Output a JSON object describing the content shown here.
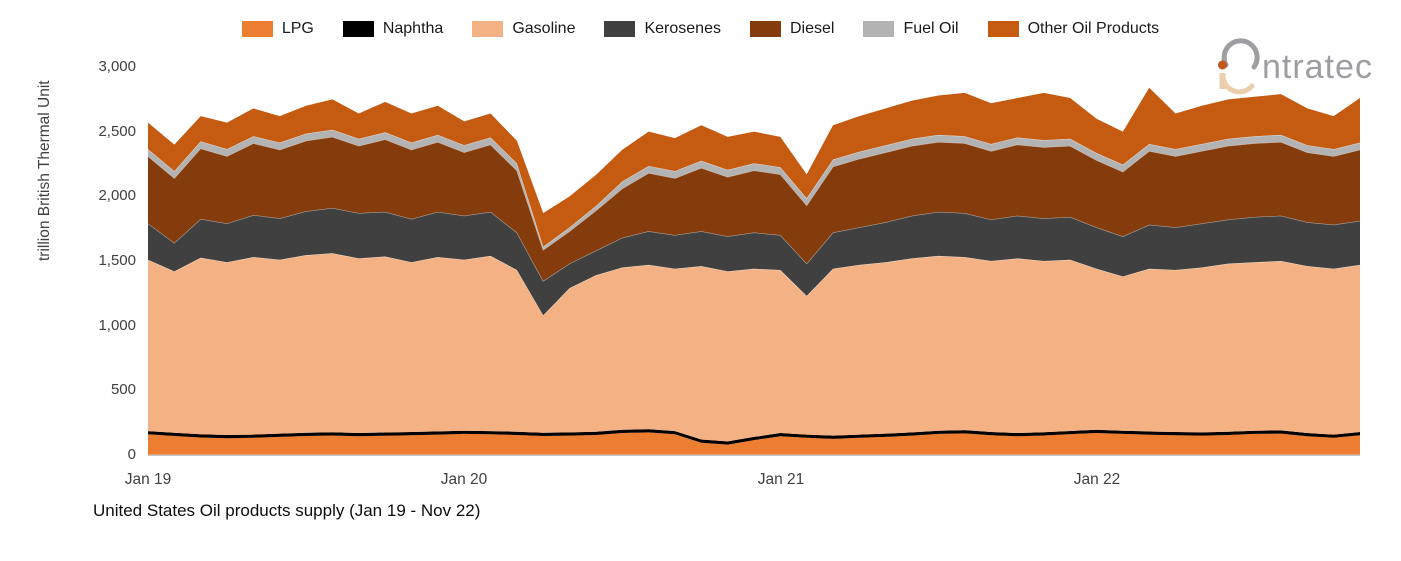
{
  "legend": {
    "items": [
      {
        "label": "LPG",
        "color": "#ED7D31"
      },
      {
        "label": "Naphtha",
        "color": "#000000"
      },
      {
        "label": "Gasoline",
        "color": "#F4B183"
      },
      {
        "label": "Kerosenes",
        "color": "#404040"
      },
      {
        "label": "Diesel",
        "color": "#843C0C"
      },
      {
        "label": "Fuel Oil",
        "color": "#B3B3B3"
      },
      {
        "label": "Other Oil Products",
        "color": "#C55A11"
      }
    ]
  },
  "logo": {
    "text": "ntratec",
    "full_name": "intratec",
    "gray": "#9c9ea1",
    "orange": "#C0571C",
    "beige": "#EBCFAC"
  },
  "y_axis": {
    "title": "trillion British Thermal Unit",
    "ticks": [
      "3,000",
      "2,500",
      "2,000",
      "1,500",
      "1,000",
      "500",
      "0"
    ]
  },
  "x_axis": {
    "ticks": [
      "Jan 19",
      "Jan 20",
      "Jan 21",
      "Jan 22"
    ]
  },
  "caption": "United States Oil products supply (Jan 19 - Nov 22)",
  "chart_data": {
    "type": "area",
    "stacked": true,
    "title": "United States Oil products supply (Jan 19 - Nov 22)",
    "ylabel": "trillion British Thermal Unit",
    "ylim": [
      0,
      3000
    ],
    "grid": false,
    "legend_position": "top",
    "axis_line_color": "#c6c6c6",
    "x": [
      "2019-01",
      "2019-02",
      "2019-03",
      "2019-04",
      "2019-05",
      "2019-06",
      "2019-07",
      "2019-08",
      "2019-09",
      "2019-10",
      "2019-11",
      "2019-12",
      "2020-01",
      "2020-02",
      "2020-03",
      "2020-04",
      "2020-05",
      "2020-06",
      "2020-07",
      "2020-08",
      "2020-09",
      "2020-10",
      "2020-11",
      "2020-12",
      "2021-01",
      "2021-02",
      "2021-03",
      "2021-04",
      "2021-05",
      "2021-06",
      "2021-07",
      "2021-08",
      "2021-09",
      "2021-10",
      "2021-11",
      "2021-12",
      "2022-01",
      "2022-02",
      "2022-03",
      "2022-04",
      "2022-05",
      "2022-06",
      "2022-07",
      "2022-08",
      "2022-09",
      "2022-10",
      "2022-11"
    ],
    "x_tick_labels": [
      "Jan 19",
      "Jan 20",
      "Jan 21",
      "Jan 22"
    ],
    "x_tick_month_index": [
      0,
      12,
      24,
      36
    ],
    "series": [
      {
        "name": "LPG",
        "color": "#ED7D31",
        "values": [
          160,
          147,
          135,
          130,
          133,
          140,
          147,
          151,
          145,
          149,
          153,
          158,
          163,
          160,
          155,
          147,
          150,
          155,
          170,
          175,
          160,
          95,
          80,
          115,
          145,
          133,
          125,
          133,
          140,
          150,
          163,
          167,
          153,
          145,
          151,
          161,
          170,
          163,
          157,
          153,
          150,
          155,
          163,
          165,
          145,
          133,
          153
        ]
      },
      {
        "name": "Naphtha",
        "color": "#000000",
        "values": [
          25,
          25,
          25,
          25,
          25,
          25,
          25,
          25,
          25,
          25,
          25,
          25,
          25,
          25,
          25,
          25,
          25,
          25,
          25,
          25,
          25,
          25,
          25,
          25,
          25,
          25,
          25,
          25,
          25,
          25,
          25,
          25,
          25,
          25,
          25,
          25,
          25,
          25,
          25,
          25,
          25,
          25,
          25,
          25,
          25,
          25,
          25
        ]
      },
      {
        "name": "Gasoline",
        "color": "#F4B183",
        "values": [
          1325,
          1248,
          1365,
          1335,
          1372,
          1345,
          1373,
          1384,
          1350,
          1361,
          1312,
          1347,
          1322,
          1355,
          1250,
          908,
          1115,
          1210,
          1255,
          1270,
          1255,
          1340,
          1315,
          1300,
          1260,
          1072,
          1290,
          1312,
          1325,
          1345,
          1352,
          1338,
          1322,
          1350,
          1324,
          1324,
          1245,
          1192,
          1258,
          1252,
          1275,
          1300,
          1302,
          1310,
          1290,
          1282,
          1292
        ]
      },
      {
        "name": "Kerosenes",
        "color": "#404040",
        "values": [
          280,
          220,
          300,
          300,
          325,
          320,
          340,
          350,
          350,
          345,
          335,
          350,
          340,
          340,
          290,
          265,
          190,
          190,
          230,
          260,
          260,
          270,
          270,
          280,
          270,
          250,
          280,
          290,
          310,
          330,
          340,
          340,
          320,
          330,
          330,
          330,
          320,
          310,
          340,
          330,
          340,
          340,
          350,
          350,
          340,
          340,
          340
        ]
      },
      {
        "name": "Diesel",
        "color": "#843C0C",
        "values": [
          520,
          500,
          545,
          520,
          555,
          530,
          545,
          550,
          520,
          560,
          535,
          540,
          490,
          520,
          480,
          240,
          250,
          310,
          380,
          450,
          440,
          490,
          460,
          480,
          470,
          450,
          510,
          530,
          540,
          540,
          540,
          540,
          530,
          550,
          550,
          550,
          520,
          500,
          570,
          550,
          560,
          570,
          570,
          570,
          540,
          530,
          550
        ]
      },
      {
        "name": "Fuel Oil",
        "color": "#B3B3B3",
        "values": [
          55,
          55,
          55,
          55,
          55,
          55,
          55,
          55,
          55,
          55,
          55,
          55,
          55,
          55,
          55,
          25,
          30,
          35,
          55,
          55,
          55,
          55,
          55,
          55,
          55,
          55,
          55,
          55,
          55,
          55,
          55,
          55,
          55,
          55,
          55,
          55,
          55,
          55,
          55,
          55,
          55,
          55,
          55,
          55,
          55,
          55,
          55
        ]
      },
      {
        "name": "Other Oil Products",
        "color": "#C55A11",
        "values": [
          205,
          205,
          195,
          205,
          215,
          205,
          215,
          235,
          195,
          235,
          225,
          225,
          185,
          185,
          175,
          260,
          240,
          240,
          245,
          265,
          255,
          275,
          255,
          245,
          235,
          185,
          265,
          275,
          285,
          295,
          305,
          335,
          315,
          305,
          365,
          315,
          265,
          255,
          435,
          275,
          295,
          305,
          305,
          315,
          285,
          255,
          345
        ]
      }
    ]
  }
}
